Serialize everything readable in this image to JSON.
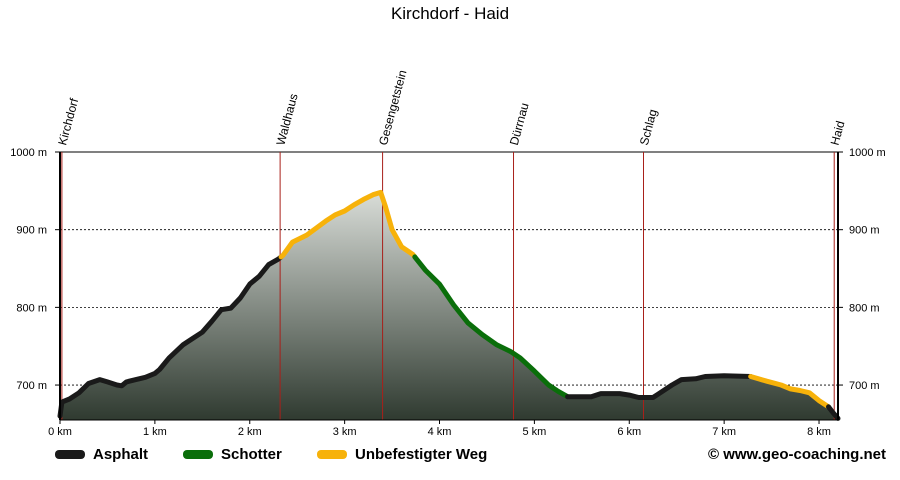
{
  "chart_data": {
    "type": "area",
    "title": "Kirchdorf - Haid",
    "x_unit": "km",
    "y_unit": "m",
    "xlim": [
      0,
      8.2
    ],
    "ylim": [
      655,
      1000
    ],
    "x_ticks": [
      0,
      1,
      2,
      3,
      4,
      5,
      6,
      7,
      8
    ],
    "x_tick_labels": [
      "0 km",
      "1 km",
      "2 km",
      "3 km",
      "4 km",
      "5 km",
      "6 km",
      "7 km",
      "8 km"
    ],
    "y_ticks": [
      700,
      800,
      900,
      1000
    ],
    "y_tick_labels": [
      "700 m",
      "800 m",
      "900 m",
      "1000 m"
    ],
    "grid": "horizontal dotted",
    "waypoints": [
      {
        "name": "Kirchdorf",
        "x": 0.02
      },
      {
        "name": "Waldhaus",
        "x": 2.32
      },
      {
        "name": "Gesengetstein",
        "x": 3.4
      },
      {
        "name": "Dürrnau",
        "x": 4.78
      },
      {
        "name": "Schlag",
        "x": 6.15
      },
      {
        "name": "Haid",
        "x": 8.16
      }
    ],
    "profile": [
      [
        0.0,
        660
      ],
      [
        0.02,
        678
      ],
      [
        0.1,
        682
      ],
      [
        0.2,
        690
      ],
      [
        0.3,
        702
      ],
      [
        0.42,
        707
      ],
      [
        0.5,
        704
      ],
      [
        0.6,
        700
      ],
      [
        0.65,
        699
      ],
      [
        0.7,
        704
      ],
      [
        0.8,
        707
      ],
      [
        0.9,
        710
      ],
      [
        1.0,
        715
      ],
      [
        1.05,
        720
      ],
      [
        1.15,
        735
      ],
      [
        1.3,
        752
      ],
      [
        1.4,
        760
      ],
      [
        1.5,
        768
      ],
      [
        1.6,
        782
      ],
      [
        1.7,
        797
      ],
      [
        1.8,
        799
      ],
      [
        1.9,
        812
      ],
      [
        2.0,
        830
      ],
      [
        2.1,
        840
      ],
      [
        2.2,
        855
      ],
      [
        2.3,
        862
      ],
      [
        2.35,
        867
      ],
      [
        2.45,
        884
      ],
      [
        2.6,
        893
      ],
      [
        2.7,
        902
      ],
      [
        2.8,
        911
      ],
      [
        2.9,
        919
      ],
      [
        3.0,
        924
      ],
      [
        3.1,
        932
      ],
      [
        3.2,
        939
      ],
      [
        3.3,
        945
      ],
      [
        3.38,
        948
      ],
      [
        3.43,
        930
      ],
      [
        3.5,
        900
      ],
      [
        3.6,
        878
      ],
      [
        3.72,
        868
      ],
      [
        3.85,
        848
      ],
      [
        4.0,
        830
      ],
      [
        4.15,
        803
      ],
      [
        4.3,
        780
      ],
      [
        4.45,
        765
      ],
      [
        4.6,
        752
      ],
      [
        4.75,
        743
      ],
      [
        4.85,
        735
      ],
      [
        5.0,
        718
      ],
      [
        5.15,
        700
      ],
      [
        5.25,
        692
      ],
      [
        5.35,
        685
      ],
      [
        5.6,
        685
      ],
      [
        5.7,
        689
      ],
      [
        5.9,
        689
      ],
      [
        6.0,
        687
      ],
      [
        6.1,
        684
      ],
      [
        6.25,
        684
      ],
      [
        6.3,
        688
      ],
      [
        6.45,
        700
      ],
      [
        6.55,
        707
      ],
      [
        6.7,
        708
      ],
      [
        6.8,
        711
      ],
      [
        7.0,
        712
      ],
      [
        7.28,
        711
      ],
      [
        7.45,
        705
      ],
      [
        7.6,
        700
      ],
      [
        7.7,
        695
      ],
      [
        7.8,
        693
      ],
      [
        7.9,
        690
      ],
      [
        8.0,
        680
      ],
      [
        8.1,
        672
      ],
      [
        8.15,
        664
      ],
      [
        8.2,
        657
      ]
    ],
    "segments": [
      {
        "surface": "Asphalt",
        "from": 0.0,
        "to": 2.33
      },
      {
        "surface": "Unbefestigter Weg",
        "from": 2.33,
        "to": 3.74
      },
      {
        "surface": "Schotter",
        "from": 3.74,
        "to": 5.35
      },
      {
        "surface": "Asphalt",
        "from": 5.35,
        "to": 7.28
      },
      {
        "surface": "Unbefestigter Weg",
        "from": 7.28,
        "to": 8.1
      },
      {
        "surface": "Asphalt",
        "from": 8.1,
        "to": 8.2
      }
    ],
    "legend_placement": "bottom",
    "series": [
      {
        "name": "Asphalt",
        "color": "#1a1a1a"
      },
      {
        "name": "Schotter",
        "color": "#0a6e0a"
      },
      {
        "name": "Unbefestigter Weg",
        "color": "#f7b20a"
      }
    ]
  },
  "credit": "© www.geo-coaching.net",
  "colors": {
    "waypoint_line": "#a8201a",
    "fill_top": "#d9ddd8",
    "fill_bottom": "#2f3a30"
  }
}
